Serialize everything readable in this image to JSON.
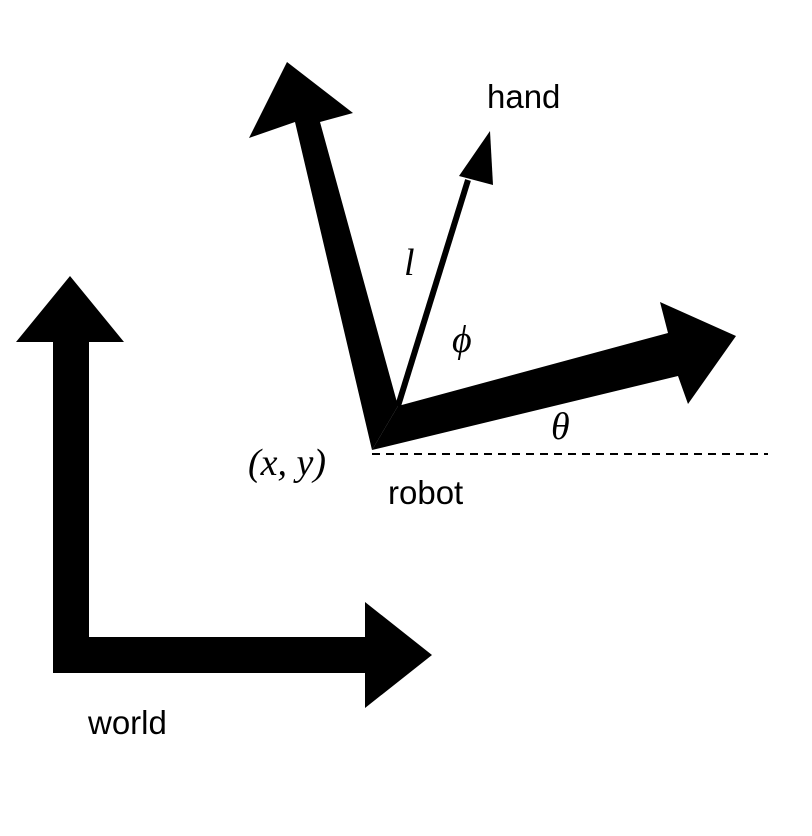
{
  "diagram": {
    "colors": {
      "ink": "#000000",
      "background": "#ffffff"
    },
    "frames": {
      "world": {
        "label": "world"
      },
      "robot": {
        "label": "robot"
      },
      "hand": {
        "label": "hand"
      }
    },
    "symbols": {
      "position": "(x, y)",
      "theta": "θ",
      "phi": "ϕ",
      "length": "l"
    }
  }
}
